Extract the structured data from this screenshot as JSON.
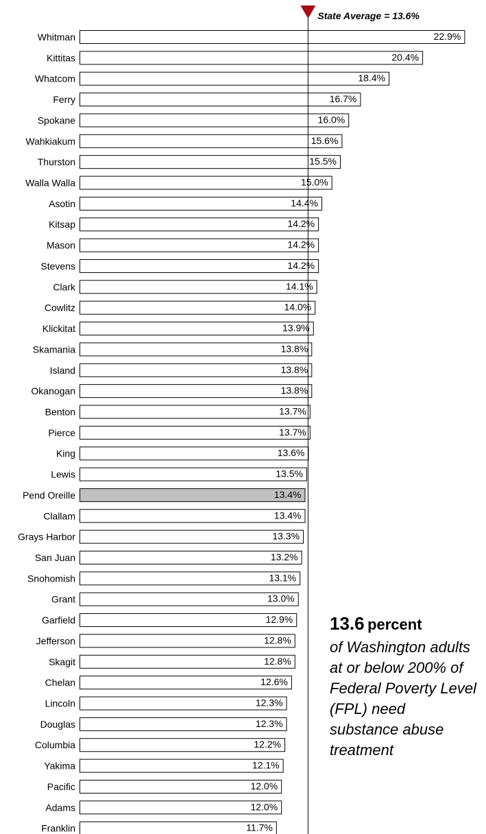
{
  "chart_data": {
    "type": "bar",
    "orientation": "horizontal",
    "categories": [
      "Whitman",
      "Kittitas",
      "Whatcom",
      "Ferry",
      "Spokane",
      "Wahkiakum",
      "Thurston",
      "Walla Walla",
      "Asotin",
      "Kitsap",
      "Mason",
      "Stevens",
      "Clark",
      "Cowlitz",
      "Klickitat",
      "Skamania",
      "Island",
      "Okanogan",
      "Benton",
      "Pierce",
      "King",
      "Lewis",
      "Pend Oreille",
      "Clallam",
      "Grays Harbor",
      "San Juan",
      "Snohomish",
      "Grant",
      "Garfield",
      "Jefferson",
      "Skagit",
      "Chelan",
      "Lincoln",
      "Douglas",
      "Columbia",
      "Yakima",
      "Pacific",
      "Adams",
      "Franklin"
    ],
    "values": [
      22.9,
      20.4,
      18.4,
      16.7,
      16.0,
      15.6,
      15.5,
      15.0,
      14.4,
      14.2,
      14.2,
      14.2,
      14.1,
      14.0,
      13.9,
      13.8,
      13.8,
      13.8,
      13.7,
      13.7,
      13.6,
      13.5,
      13.4,
      13.4,
      13.3,
      13.2,
      13.1,
      13.0,
      12.9,
      12.8,
      12.8,
      12.6,
      12.3,
      12.3,
      12.2,
      12.1,
      12.0,
      12.0,
      11.7
    ],
    "value_labels": [
      "22.9%",
      "20.4%",
      "18.4%",
      "16.7%",
      "16.0%",
      "15.6%",
      "15.5%",
      "15.0%",
      "14.4%",
      "14.2%",
      "14.2%",
      "14.2%",
      "14.1%",
      "14.0%",
      "13.9%",
      "13.8%",
      "13.8%",
      "13.8%",
      "13.7%",
      "13.7%",
      "13.6%",
      "13.5%",
      "13.4%",
      "13.4%",
      "13.3%",
      "13.2%",
      "13.1%",
      "13.0%",
      "12.9%",
      "12.8%",
      "12.8%",
      "12.6%",
      "12.3%",
      "12.3%",
      "12.2%",
      "12.1%",
      "12.0%",
      "12.0%",
      "11.7%"
    ],
    "highlighted_category": "Pend Oreille",
    "reference_line": {
      "value": 13.6,
      "label": "State Average = 13.6%"
    },
    "xlim": [
      0,
      23.7
    ],
    "grid": false,
    "colors": {
      "bar": "#ffffff",
      "highlight": "#c0c0c0",
      "outline": "#000000",
      "marker": "#a50f15"
    }
  },
  "callout": {
    "number": "13.6",
    "unit": "percent",
    "text": "of Washington adults at or below 200% of Federal Poverty Level (FPL) need substance abuse treatment"
  }
}
